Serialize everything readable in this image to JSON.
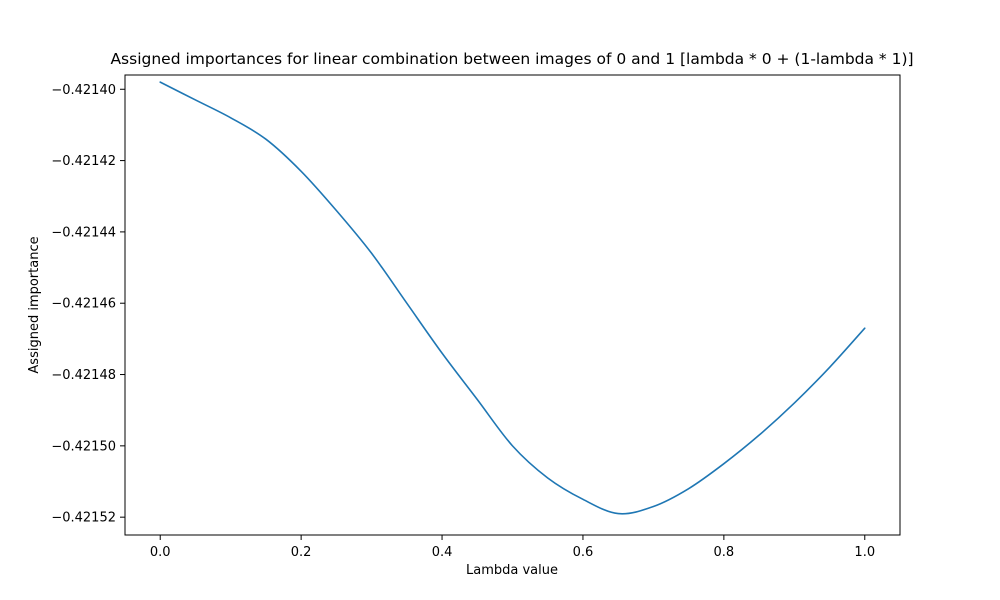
{
  "chart_data": {
    "type": "line",
    "title": "Assigned importances for linear combination between images of 0 and 1 [lambda * 0 + (1-lambda * 1)]",
    "xlabel": "Lambda value",
    "ylabel": "Assigned importance",
    "xlim": [
      -0.05,
      1.05
    ],
    "ylim": [
      -0.421525,
      -0.421396
    ],
    "x_ticks": [
      0.0,
      0.2,
      0.4,
      0.6,
      0.8,
      1.0
    ],
    "x_tick_labels": [
      "0.0",
      "0.2",
      "0.4",
      "0.6",
      "0.8",
      "1.0"
    ],
    "y_ticks": [
      -0.4214,
      -0.42142,
      -0.42144,
      -0.42146,
      -0.42148,
      -0.4215,
      -0.42152
    ],
    "y_tick_labels": [
      "−0.42140",
      "−0.42142",
      "−0.42144",
      "−0.42146",
      "−0.42148",
      "−0.42150",
      "−0.42152"
    ],
    "grid": false,
    "line_color": "#1f77b4",
    "series": [
      {
        "x": [
          0.0,
          0.05,
          0.1,
          0.15,
          0.2,
          0.25,
          0.3,
          0.35,
          0.4,
          0.45,
          0.5,
          0.55,
          0.6,
          0.65,
          0.7,
          0.75,
          0.8,
          0.85,
          0.9,
          0.95,
          1.0
        ],
        "y": [
          -0.421398,
          -0.421403,
          -0.421408,
          -0.421414,
          -0.421423,
          -0.421434,
          -0.421446,
          -0.42146,
          -0.421474,
          -0.421487,
          -0.4215,
          -0.421509,
          -0.421515,
          -0.421519,
          -0.421517,
          -0.421512,
          -0.421505,
          -0.421497,
          -0.421488,
          -0.421478,
          -0.421467
        ]
      }
    ]
  }
}
